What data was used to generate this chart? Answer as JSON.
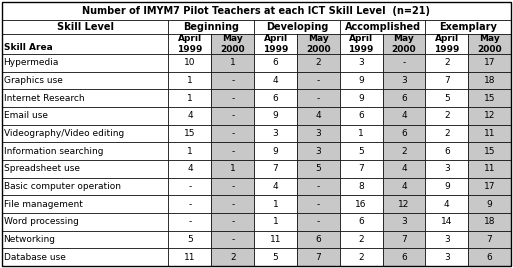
{
  "title": "Number of IMYM7 Pilot Teachers at each ICT Skill Level  (n=21)",
  "rows": [
    [
      "Hypermedia",
      "10",
      "1",
      "6",
      "2",
      "3",
      "-",
      "2",
      "17"
    ],
    [
      "Graphics use",
      "1",
      "-",
      "4",
      "-",
      "9",
      "3",
      "7",
      "18"
    ],
    [
      "Internet Research",
      "1",
      "-",
      "6",
      "-",
      "9",
      "6",
      "5",
      "15"
    ],
    [
      "Email use",
      "4",
      "-",
      "9",
      "4",
      "6",
      "4",
      "2",
      "12"
    ],
    [
      "Videography/Video editing",
      "15",
      "-",
      "3",
      "3",
      "1",
      "6",
      "2",
      "11"
    ],
    [
      "Information searching",
      "1",
      "-",
      "9",
      "3",
      "5",
      "2",
      "6",
      "15"
    ],
    [
      "Spreadsheet use",
      "4",
      "1",
      "7",
      "5",
      "7",
      "4",
      "3",
      "11"
    ],
    [
      "Basic computer operation",
      "-",
      "-",
      "4",
      "-",
      "8",
      "4",
      "9",
      "17"
    ],
    [
      "File management",
      "-",
      "-",
      "1",
      "-",
      "16",
      "12",
      "4",
      "9"
    ],
    [
      "Word processing",
      "-",
      "-",
      "1",
      "-",
      "6",
      "3",
      "14",
      "18"
    ],
    [
      "Networking",
      "5",
      "-",
      "11",
      "6",
      "2",
      "7",
      "3",
      "7"
    ],
    [
      "Database use",
      "11",
      "2",
      "5",
      "7",
      "2",
      "6",
      "3",
      "6"
    ]
  ],
  "bg_white": "#ffffff",
  "bg_gray": "#c8c8c8",
  "border_color": "#000000",
  "title_fontsize": 7.0,
  "header1_fontsize": 7.0,
  "header2_fontsize": 6.5,
  "cell_fontsize": 6.5,
  "col_widths_raw": [
    2.8,
    0.72,
    0.72,
    0.72,
    0.72,
    0.72,
    0.72,
    0.72,
    0.72
  ]
}
